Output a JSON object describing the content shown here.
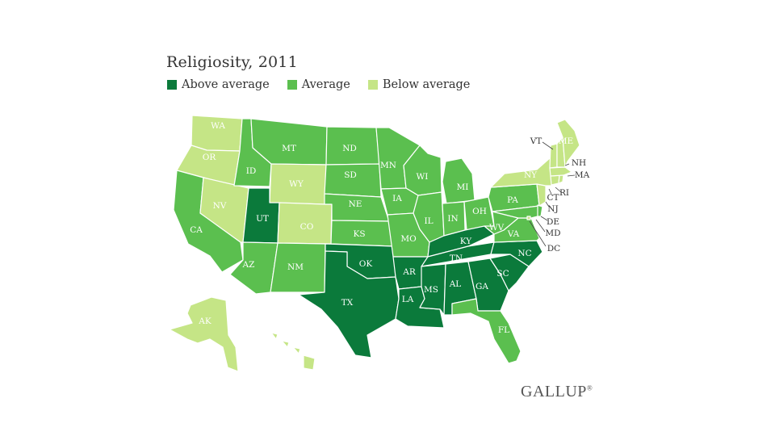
{
  "title": "Religiosity, 2011",
  "legend": [
    {
      "label": "Above average",
      "color": "#0b7a3b"
    },
    {
      "label": "Average",
      "color": "#5bbf4f"
    },
    {
      "label": "Below average",
      "color": "#c5e586"
    }
  ],
  "logo": {
    "text": "GALLUP",
    "mark": "®"
  },
  "states": {
    "WA": "Below average",
    "OR": "Below average",
    "CA": "Average",
    "NV": "Below average",
    "ID": "Average",
    "MT": "Average",
    "WY": "Below average",
    "UT": "Above average",
    "CO": "Below average",
    "AZ": "Average",
    "NM": "Average",
    "ND": "Average",
    "SD": "Average",
    "NE": "Average",
    "KS": "Average",
    "OK": "Above average",
    "TX": "Above average",
    "MN": "Average",
    "IA": "Average",
    "MO": "Average",
    "AR": "Above average",
    "LA": "Above average",
    "WI": "Average",
    "IL": "Average",
    "MS": "Above average",
    "MI": "Average",
    "IN": "Average",
    "KY": "Above average",
    "TN": "Above average",
    "AL": "Above average",
    "OH": "Average",
    "WV": "Average",
    "VA": "Average",
    "NC": "Above average",
    "SC": "Above average",
    "GA": "Above average",
    "FL": "Average",
    "PA": "Average",
    "NY": "Below average",
    "VT": "Below average",
    "NH": "Below average",
    "ME": "Below average",
    "MA": "Below average",
    "RI": "Below average",
    "CT": "Below average",
    "NJ": "Below average",
    "DE": "Average",
    "MD": "Average",
    "DC": "Below average",
    "AK": "Below average",
    "HI": "Below average"
  }
}
